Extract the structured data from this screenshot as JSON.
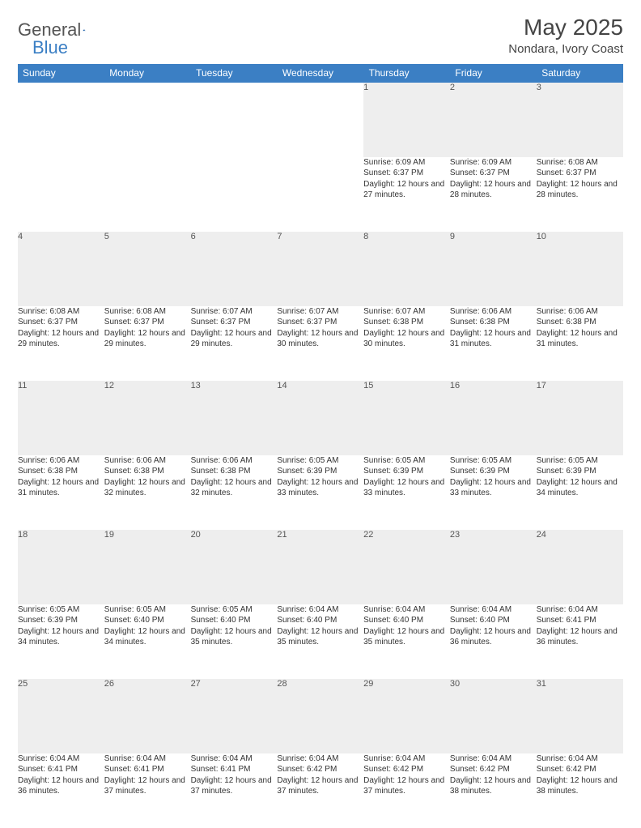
{
  "brand": {
    "word1": "General",
    "word2": "Blue",
    "logo_color": "#1d5fa8"
  },
  "colors": {
    "header_bg": "#3b7fc4",
    "header_text": "#ffffff",
    "daynum_bg": "#eeeeee",
    "border": "#3b7fc4",
    "body_text": "#333333"
  },
  "title": "May 2025",
  "location": "Nondara, Ivory Coast",
  "weekdays": [
    "Sunday",
    "Monday",
    "Tuesday",
    "Wednesday",
    "Thursday",
    "Friday",
    "Saturday"
  ],
  "weeks": [
    {
      "nums": [
        "",
        "",
        "",
        "",
        "1",
        "2",
        "3"
      ],
      "cells": [
        null,
        null,
        null,
        null,
        {
          "sunrise": "6:09 AM",
          "sunset": "6:37 PM",
          "daylight": "12 hours and 27 minutes."
        },
        {
          "sunrise": "6:09 AM",
          "sunset": "6:37 PM",
          "daylight": "12 hours and 28 minutes."
        },
        {
          "sunrise": "6:08 AM",
          "sunset": "6:37 PM",
          "daylight": "12 hours and 28 minutes."
        }
      ]
    },
    {
      "nums": [
        "4",
        "5",
        "6",
        "7",
        "8",
        "9",
        "10"
      ],
      "cells": [
        {
          "sunrise": "6:08 AM",
          "sunset": "6:37 PM",
          "daylight": "12 hours and 29 minutes."
        },
        {
          "sunrise": "6:08 AM",
          "sunset": "6:37 PM",
          "daylight": "12 hours and 29 minutes."
        },
        {
          "sunrise": "6:07 AM",
          "sunset": "6:37 PM",
          "daylight": "12 hours and 29 minutes."
        },
        {
          "sunrise": "6:07 AM",
          "sunset": "6:37 PM",
          "daylight": "12 hours and 30 minutes."
        },
        {
          "sunrise": "6:07 AM",
          "sunset": "6:38 PM",
          "daylight": "12 hours and 30 minutes."
        },
        {
          "sunrise": "6:06 AM",
          "sunset": "6:38 PM",
          "daylight": "12 hours and 31 minutes."
        },
        {
          "sunrise": "6:06 AM",
          "sunset": "6:38 PM",
          "daylight": "12 hours and 31 minutes."
        }
      ]
    },
    {
      "nums": [
        "11",
        "12",
        "13",
        "14",
        "15",
        "16",
        "17"
      ],
      "cells": [
        {
          "sunrise": "6:06 AM",
          "sunset": "6:38 PM",
          "daylight": "12 hours and 31 minutes."
        },
        {
          "sunrise": "6:06 AM",
          "sunset": "6:38 PM",
          "daylight": "12 hours and 32 minutes."
        },
        {
          "sunrise": "6:06 AM",
          "sunset": "6:38 PM",
          "daylight": "12 hours and 32 minutes."
        },
        {
          "sunrise": "6:05 AM",
          "sunset": "6:39 PM",
          "daylight": "12 hours and 33 minutes."
        },
        {
          "sunrise": "6:05 AM",
          "sunset": "6:39 PM",
          "daylight": "12 hours and 33 minutes."
        },
        {
          "sunrise": "6:05 AM",
          "sunset": "6:39 PM",
          "daylight": "12 hours and 33 minutes."
        },
        {
          "sunrise": "6:05 AM",
          "sunset": "6:39 PM",
          "daylight": "12 hours and 34 minutes."
        }
      ]
    },
    {
      "nums": [
        "18",
        "19",
        "20",
        "21",
        "22",
        "23",
        "24"
      ],
      "cells": [
        {
          "sunrise": "6:05 AM",
          "sunset": "6:39 PM",
          "daylight": "12 hours and 34 minutes."
        },
        {
          "sunrise": "6:05 AM",
          "sunset": "6:40 PM",
          "daylight": "12 hours and 34 minutes."
        },
        {
          "sunrise": "6:05 AM",
          "sunset": "6:40 PM",
          "daylight": "12 hours and 35 minutes."
        },
        {
          "sunrise": "6:04 AM",
          "sunset": "6:40 PM",
          "daylight": "12 hours and 35 minutes."
        },
        {
          "sunrise": "6:04 AM",
          "sunset": "6:40 PM",
          "daylight": "12 hours and 35 minutes."
        },
        {
          "sunrise": "6:04 AM",
          "sunset": "6:40 PM",
          "daylight": "12 hours and 36 minutes."
        },
        {
          "sunrise": "6:04 AM",
          "sunset": "6:41 PM",
          "daylight": "12 hours and 36 minutes."
        }
      ]
    },
    {
      "nums": [
        "25",
        "26",
        "27",
        "28",
        "29",
        "30",
        "31"
      ],
      "cells": [
        {
          "sunrise": "6:04 AM",
          "sunset": "6:41 PM",
          "daylight": "12 hours and 36 minutes."
        },
        {
          "sunrise": "6:04 AM",
          "sunset": "6:41 PM",
          "daylight": "12 hours and 37 minutes."
        },
        {
          "sunrise": "6:04 AM",
          "sunset": "6:41 PM",
          "daylight": "12 hours and 37 minutes."
        },
        {
          "sunrise": "6:04 AM",
          "sunset": "6:42 PM",
          "daylight": "12 hours and 37 minutes."
        },
        {
          "sunrise": "6:04 AM",
          "sunset": "6:42 PM",
          "daylight": "12 hours and 37 minutes."
        },
        {
          "sunrise": "6:04 AM",
          "sunset": "6:42 PM",
          "daylight": "12 hours and 38 minutes."
        },
        {
          "sunrise": "6:04 AM",
          "sunset": "6:42 PM",
          "daylight": "12 hours and 38 minutes."
        }
      ]
    }
  ],
  "labels": {
    "sunrise": "Sunrise:",
    "sunset": "Sunset:",
    "daylight": "Daylight:"
  }
}
